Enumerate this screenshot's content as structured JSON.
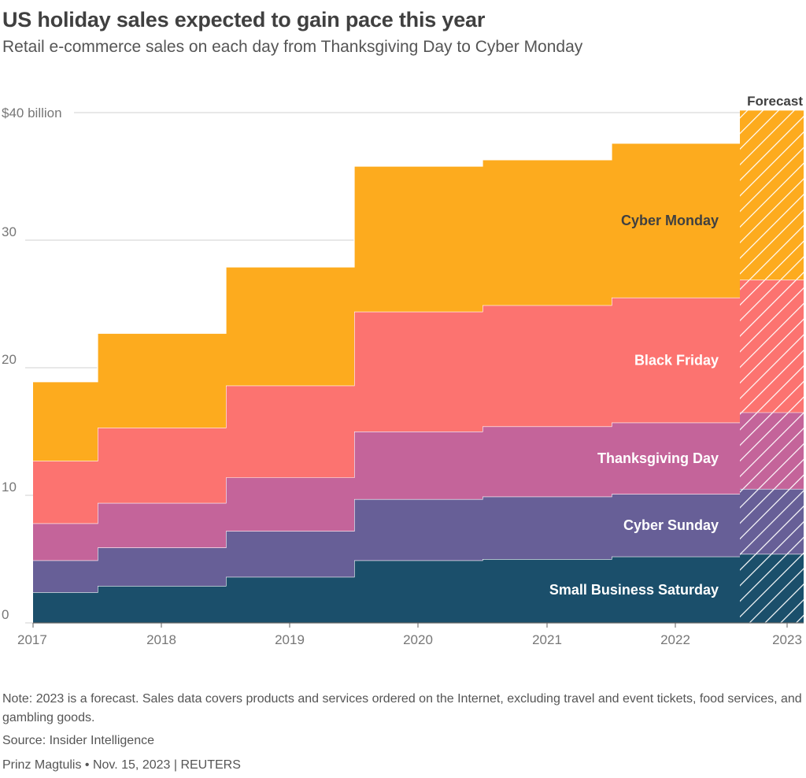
{
  "title": "US holiday sales expected to gain pace this year",
  "subtitle": "Retail e-commerce sales on each day from Thanksgiving Day to Cyber Monday",
  "note": "Note: 2023 is a forecast. Sales data covers products and services ordered on the Internet, excluding travel and event tickets, food services, and gambling goods.",
  "source": "Source: Insider Intelligence",
  "byline": "Prinz Magtulis • Nov. 15, 2023 | REUTERS",
  "chart_data": {
    "type": "area",
    "stacked": true,
    "step": true,
    "categories": [
      "2017",
      "2018",
      "2019",
      "2020",
      "2021",
      "2022",
      "2023"
    ],
    "y_tick_labels": [
      "0",
      "10",
      "20",
      "30",
      "$40 billion"
    ],
    "y_ticks": [
      0,
      10,
      20,
      30,
      40
    ],
    "ylim": [
      0,
      40
    ],
    "forecast_label": "Forecast",
    "forecast_category": "2023",
    "grid": "horizontal",
    "series": [
      {
        "name": "Small Business Saturday",
        "color": "#1b4f6b",
        "values": [
          2.4,
          2.9,
          3.6,
          4.9,
          5.0,
          5.2,
          5.4
        ]
      },
      {
        "name": "Cyber Sunday",
        "color": "#675f97",
        "values": [
          2.5,
          3.0,
          3.6,
          4.8,
          4.9,
          4.9,
          5.1
        ]
      },
      {
        "name": "Thanksgiving Day",
        "color": "#c4649a",
        "values": [
          2.9,
          3.5,
          4.2,
          5.3,
          5.5,
          5.6,
          6.0
        ]
      },
      {
        "name": "Black Friday",
        "color": "#fc7370",
        "values": [
          4.9,
          5.9,
          7.2,
          9.4,
          9.5,
          9.8,
          10.4
        ]
      },
      {
        "name": "Cyber Monday",
        "color": "#fdab1e",
        "values": [
          6.2,
          7.4,
          9.3,
          11.4,
          11.4,
          12.1,
          13.3
        ]
      }
    ]
  }
}
